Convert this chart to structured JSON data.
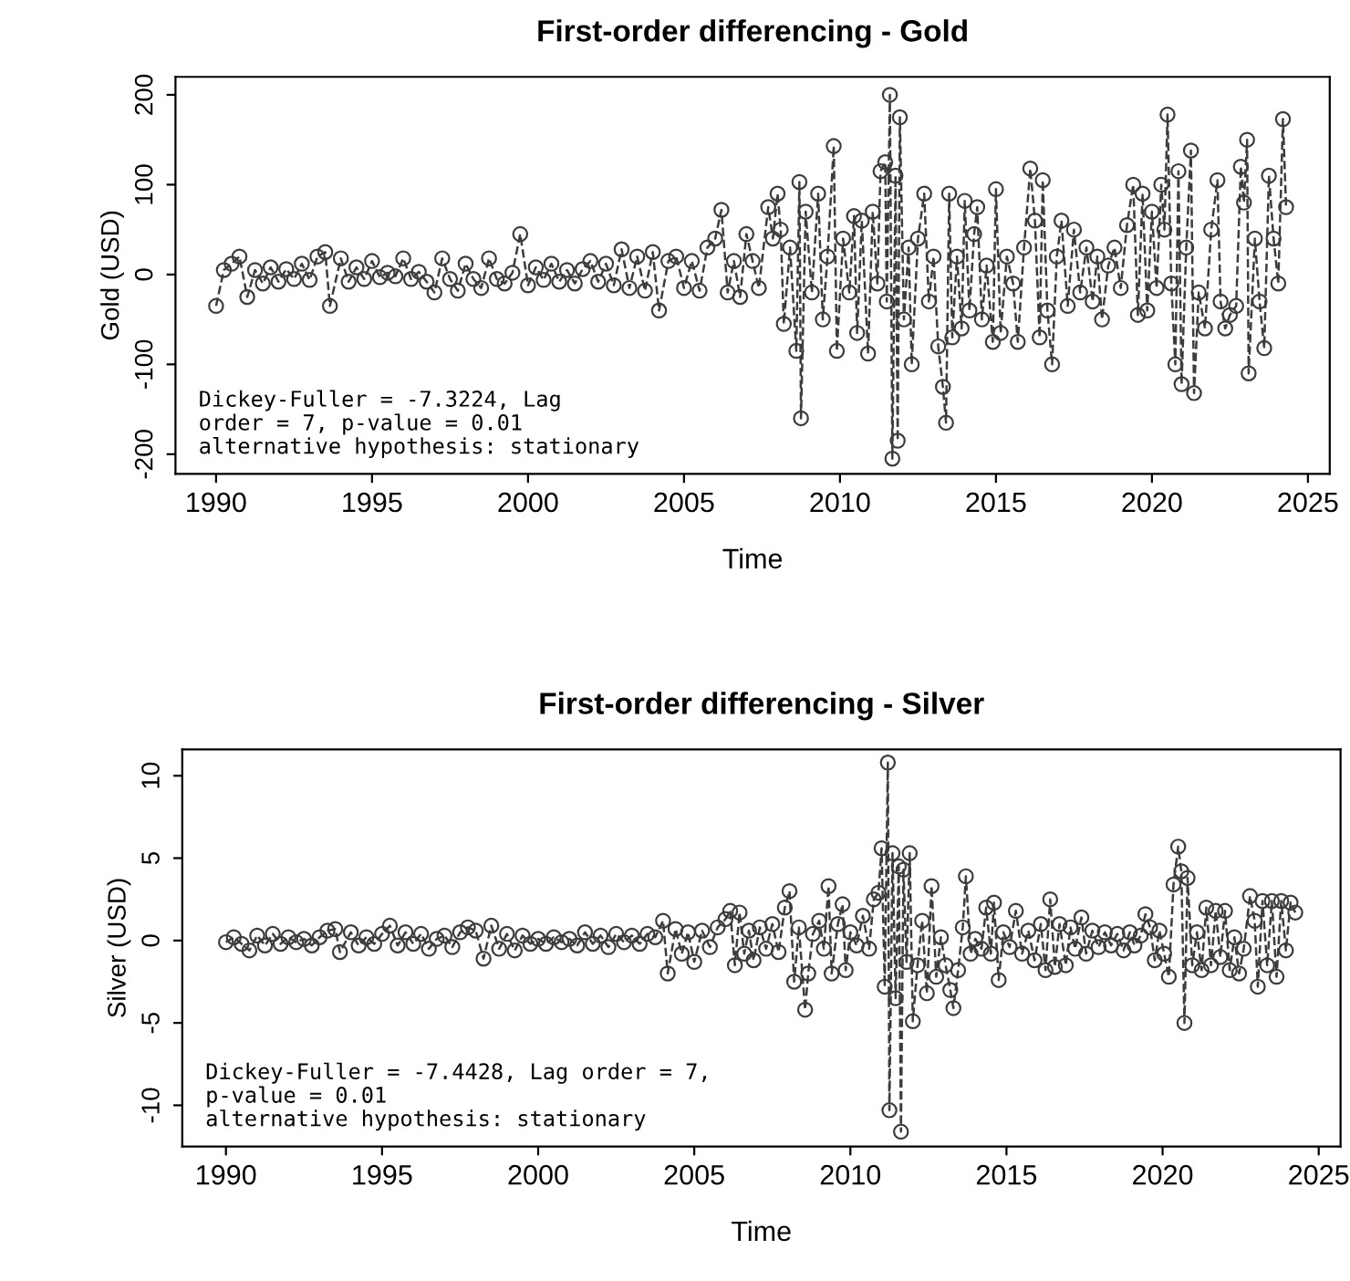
{
  "chart_data": [
    {
      "type": "line",
      "title": "First-order differencing - Gold",
      "xlabel": "Time",
      "ylabel": "Gold (USD)",
      "marker": "circle",
      "line_style": "dashed",
      "grid": false,
      "legend": false,
      "xlim": [
        1988.7,
        2025.7
      ],
      "ylim": [
        -222,
        220
      ],
      "xticks": [
        1990,
        1995,
        2000,
        2005,
        2010,
        2015,
        2020,
        2025
      ],
      "yticks": [
        -200,
        -100,
        0,
        100,
        200
      ],
      "annotations": [
        "Dickey-Fuller = -7.3224, Lag\norder = 7, p-value = 0.01\nalternative hypothesis: stationary"
      ],
      "series": [
        {
          "color": "#3c3c3c",
          "x": [
            1990.0,
            1990.25,
            1990.5,
            1990.75,
            1991.0,
            1991.25,
            1991.5,
            1991.75,
            1992.0,
            1992.25,
            1992.5,
            1992.75,
            1993.0,
            1993.25,
            1993.5,
            1993.65,
            1994.0,
            1994.25,
            1994.5,
            1994.75,
            1995.0,
            1995.25,
            1995.5,
            1995.75,
            1996.0,
            1996.25,
            1996.5,
            1996.75,
            1997.0,
            1997.25,
            1997.5,
            1997.75,
            1998.0,
            1998.25,
            1998.5,
            1998.75,
            1999.0,
            1999.25,
            1999.5,
            1999.75,
            2000.0,
            2000.25,
            2000.5,
            2000.75,
            2001.0,
            2001.25,
            2001.5,
            2001.75,
            2002.0,
            2002.25,
            2002.5,
            2002.75,
            2003.0,
            2003.25,
            2003.5,
            2003.75,
            2004.0,
            2004.2,
            2004.5,
            2004.75,
            2005.0,
            2005.25,
            2005.5,
            2005.75,
            2006.0,
            2006.2,
            2006.4,
            2006.6,
            2006.8,
            2007.0,
            2007.2,
            2007.4,
            2007.7,
            2007.85,
            2008.0,
            2008.1,
            2008.2,
            2008.4,
            2008.6,
            2008.7,
            2008.75,
            2008.9,
            2009.1,
            2009.3,
            2009.45,
            2009.6,
            2009.8,
            2009.9,
            2010.1,
            2010.3,
            2010.45,
            2010.55,
            2010.7,
            2010.9,
            2011.05,
            2011.2,
            2011.3,
            2011.45,
            2011.5,
            2011.6,
            2011.68,
            2011.78,
            2011.85,
            2011.92,
            2012.05,
            2012.2,
            2012.3,
            2012.5,
            2012.7,
            2012.85,
            2013.0,
            2013.15,
            2013.3,
            2013.4,
            2013.5,
            2013.6,
            2013.75,
            2013.9,
            2014.0,
            2014.15,
            2014.3,
            2014.4,
            2014.55,
            2014.7,
            2014.9,
            2015.0,
            2015.15,
            2015.35,
            2015.55,
            2015.7,
            2015.9,
            2016.1,
            2016.25,
            2016.4,
            2016.5,
            2016.65,
            2016.8,
            2016.95,
            2017.1,
            2017.3,
            2017.5,
            2017.7,
            2017.9,
            2018.1,
            2018.25,
            2018.4,
            2018.6,
            2018.8,
            2019.0,
            2019.2,
            2019.4,
            2019.55,
            2019.7,
            2019.85,
            2020.0,
            2020.15,
            2020.3,
            2020.4,
            2020.5,
            2020.62,
            2020.75,
            2020.85,
            2020.95,
            2021.1,
            2021.25,
            2021.35,
            2021.5,
            2021.7,
            2021.9,
            2022.1,
            2022.2,
            2022.35,
            2022.5,
            2022.7,
            2022.85,
            2022.95,
            2023.05,
            2023.1,
            2023.3,
            2023.45,
            2023.6,
            2023.75,
            2023.9,
            2024.05,
            2024.2,
            2024.3
          ],
          "values": [
            -35,
            5,
            12,
            20,
            -25,
            5,
            -10,
            8,
            -8,
            6,
            -5,
            12,
            -6,
            20,
            25,
            -35,
            18,
            -8,
            8,
            -5,
            15,
            -3,
            2,
            -2,
            18,
            -5,
            3,
            -8,
            -20,
            18,
            -5,
            -18,
            12,
            -5,
            -15,
            18,
            -5,
            -10,
            2,
            45,
            -12,
            8,
            -6,
            12,
            -8,
            5,
            -10,
            6,
            15,
            -8,
            12,
            -12,
            28,
            -15,
            20,
            -18,
            25,
            -40,
            15,
            20,
            -15,
            15,
            -18,
            30,
            40,
            72,
            -20,
            15,
            -25,
            45,
            15,
            -15,
            75,
            40,
            90,
            50,
            -55,
            30,
            -85,
            103,
            -160,
            70,
            -20,
            90,
            -50,
            20,
            143,
            -85,
            40,
            -20,
            65,
            -65,
            60,
            -88,
            70,
            -10,
            115,
            125,
            -30,
            200,
            -205,
            110,
            -185,
            175,
            -50,
            30,
            -100,
            40,
            90,
            -30,
            20,
            -80,
            -125,
            -165,
            90,
            -70,
            20,
            -60,
            82,
            -40,
            45,
            75,
            -50,
            10,
            -75,
            95,
            -65,
            20,
            -10,
            -75,
            30,
            118,
            60,
            -70,
            105,
            -40,
            -100,
            20,
            60,
            -35,
            50,
            -20,
            30,
            -30,
            20,
            -50,
            10,
            30,
            -15,
            55,
            100,
            -45,
            90,
            -40,
            70,
            -15,
            100,
            50,
            178,
            -10,
            -100,
            115,
            -122,
            30,
            138,
            -132,
            -20,
            -60,
            50,
            105,
            -30,
            -60,
            -45,
            -35,
            120,
            80,
            150,
            -110,
            40,
            -30,
            -82,
            110,
            40,
            -10,
            173,
            75
          ]
        }
      ]
    },
    {
      "type": "line",
      "title": "First-order differencing - Silver",
      "xlabel": "Time",
      "ylabel": "Silver (USD)",
      "marker": "circle",
      "line_style": "dashed",
      "grid": false,
      "legend": false,
      "xlim": [
        1988.6,
        2025.7
      ],
      "ylim": [
        -12.5,
        11.6
      ],
      "xticks": [
        1990,
        1995,
        2000,
        2005,
        2010,
        2015,
        2020,
        2025
      ],
      "yticks": [
        -10,
        -5,
        0,
        5,
        10
      ],
      "annotations": [
        "Dickey-Fuller = -7.4428, Lag order = 7,\np-value = 0.01\nalternative hypothesis: stationary"
      ],
      "series": [
        {
          "color": "#3c3c3c",
          "x": [
            1990.0,
            1990.25,
            1990.5,
            1990.75,
            1991.0,
            1991.25,
            1991.5,
            1991.75,
            1992.0,
            1992.25,
            1992.5,
            1992.75,
            1993.0,
            1993.25,
            1993.5,
            1993.65,
            1994.0,
            1994.25,
            1994.5,
            1994.75,
            1995.0,
            1995.25,
            1995.5,
            1995.75,
            1996.0,
            1996.25,
            1996.5,
            1996.75,
            1997.0,
            1997.25,
            1997.5,
            1997.75,
            1998.0,
            1998.25,
            1998.5,
            1998.75,
            1999.0,
            1999.25,
            1999.5,
            1999.75,
            2000.0,
            2000.25,
            2000.5,
            2000.75,
            2001.0,
            2001.25,
            2001.5,
            2001.75,
            2002.0,
            2002.25,
            2002.5,
            2002.75,
            2003.0,
            2003.25,
            2003.5,
            2003.75,
            2004.0,
            2004.15,
            2004.4,
            2004.6,
            2004.8,
            2005.0,
            2005.25,
            2005.5,
            2005.75,
            2006.0,
            2006.15,
            2006.3,
            2006.45,
            2006.6,
            2006.75,
            2006.9,
            2007.1,
            2007.3,
            2007.5,
            2007.7,
            2007.9,
            2008.05,
            2008.2,
            2008.35,
            2008.55,
            2008.65,
            2008.8,
            2009.0,
            2009.15,
            2009.3,
            2009.4,
            2009.6,
            2009.75,
            2009.85,
            2010.0,
            2010.2,
            2010.4,
            2010.6,
            2010.75,
            2010.9,
            2011.0,
            2011.1,
            2011.2,
            2011.25,
            2011.35,
            2011.45,
            2011.55,
            2011.62,
            2011.7,
            2011.8,
            2011.9,
            2012.0,
            2012.15,
            2012.3,
            2012.45,
            2012.6,
            2012.75,
            2012.9,
            2013.05,
            2013.2,
            2013.3,
            2013.45,
            2013.6,
            2013.7,
            2013.85,
            2014.0,
            2014.2,
            2014.35,
            2014.5,
            2014.6,
            2014.75,
            2014.9,
            2015.1,
            2015.3,
            2015.5,
            2015.7,
            2015.9,
            2016.1,
            2016.25,
            2016.4,
            2016.55,
            2016.7,
            2016.9,
            2017.05,
            2017.2,
            2017.4,
            2017.55,
            2017.75,
            2017.95,
            2018.15,
            2018.35,
            2018.55,
            2018.75,
            2018.95,
            2019.1,
            2019.3,
            2019.45,
            2019.6,
            2019.75,
            2019.9,
            2020.05,
            2020.2,
            2020.35,
            2020.5,
            2020.6,
            2020.7,
            2020.8,
            2020.95,
            2021.1,
            2021.25,
            2021.4,
            2021.55,
            2021.7,
            2021.85,
            2022.0,
            2022.15,
            2022.3,
            2022.45,
            2022.6,
            2022.8,
            2022.95,
            2023.05,
            2023.2,
            2023.35,
            2023.5,
            2023.65,
            2023.8,
            2023.95,
            2024.1,
            2024.25
          ],
          "values": [
            -0.1,
            0.2,
            -0.2,
            -0.6,
            0.3,
            -0.3,
            0.4,
            -0.2,
            0.2,
            -0.1,
            0.1,
            -0.3,
            0.2,
            0.6,
            0.7,
            -0.7,
            0.5,
            -0.3,
            0.2,
            -0.2,
            0.4,
            0.9,
            -0.3,
            0.5,
            -0.2,
            0.4,
            -0.5,
            0.1,
            0.3,
            -0.4,
            0.5,
            0.8,
            0.6,
            -1.1,
            0.9,
            -0.5,
            0.4,
            -0.6,
            0.3,
            -0.2,
            0.1,
            -0.2,
            0.2,
            -0.1,
            0.1,
            -0.3,
            0.5,
            -0.2,
            0.3,
            -0.4,
            0.4,
            -0.1,
            0.3,
            -0.2,
            0.4,
            0.2,
            1.2,
            -2.0,
            0.7,
            -0.8,
            0.5,
            -1.3,
            0.6,
            -0.4,
            0.8,
            1.3,
            1.8,
            -1.5,
            1.7,
            -0.8,
            0.6,
            -1.2,
            0.8,
            -0.5,
            1.0,
            -0.7,
            2.0,
            3.0,
            -2.5,
            0.8,
            -4.2,
            -2.0,
            0.4,
            1.2,
            -0.5,
            3.3,
            -2.0,
            1.0,
            2.2,
            -1.8,
            0.5,
            -0.3,
            1.5,
            -0.5,
            2.5,
            2.9,
            5.6,
            -2.8,
            10.8,
            -10.3,
            5.3,
            -3.5,
            4.5,
            -11.6,
            4.3,
            -1.3,
            5.3,
            -4.9,
            -1.5,
            1.2,
            -3.2,
            3.3,
            -2.2,
            0.2,
            -1.5,
            -3.0,
            -4.1,
            -1.8,
            0.8,
            3.9,
            -0.8,
            0.1,
            -0.5,
            2.0,
            -0.8,
            2.3,
            -2.4,
            0.5,
            -0.4,
            1.8,
            -0.8,
            0.6,
            -1.2,
            1.0,
            -1.8,
            2.5,
            -1.6,
            1.0,
            -1.5,
            0.8,
            -0.5,
            1.4,
            -0.8,
            0.6,
            -0.4,
            0.5,
            -0.3,
            0.4,
            -0.6,
            0.5,
            -0.3,
            0.3,
            1.6,
            0.8,
            -1.2,
            0.6,
            -0.8,
            -2.2,
            3.4,
            5.7,
            4.2,
            -5.0,
            3.8,
            -1.5,
            0.5,
            -1.8,
            2.0,
            -1.5,
            1.8,
            -1.0,
            1.8,
            -1.8,
            0.2,
            -2.0,
            -0.5,
            2.7,
            1.2,
            -2.8,
            2.4,
            -1.5,
            2.4,
            -2.2,
            2.4,
            -0.6,
            2.3,
            1.7
          ]
        }
      ]
    }
  ]
}
